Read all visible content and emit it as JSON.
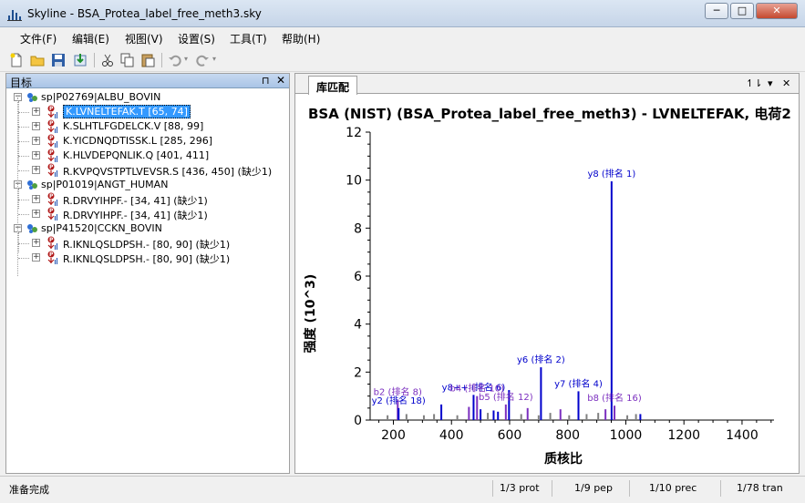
{
  "window": {
    "app_name": "Skyline",
    "file_name": "BSA_Protea_label_free_meth3.sky",
    "title_sep": " - ",
    "min_label": "─",
    "max_label": "□",
    "close_label": "✕"
  },
  "menu": [
    "文件(F)",
    "编辑(E)",
    "视图(V)",
    "设置(S)",
    "工具(T)",
    "帮助(H)"
  ],
  "toolbar": {
    "icons": [
      "new-doc-icon",
      "open-folder-icon",
      "save-icon",
      "import-icon",
      "cut-icon",
      "copy-icon",
      "paste-icon",
      "undo-icon",
      "redo-icon"
    ]
  },
  "targets_panel": {
    "title": "目标",
    "pin_glyph": "⊓",
    "close_glyph": "✕",
    "proteins": [
      {
        "name": "sp|P02769|ALBU_BOVIN",
        "peptides": [
          {
            "label": "K.LVNELTEFAK.T [65, 74]",
            "selected": true
          },
          {
            "label": "K.SLHTLFGDELCK.V [88, 99]",
            "selected": false
          },
          {
            "label": "K.YICDNQDTISSK.L [285, 296]",
            "selected": false
          },
          {
            "label": "K.HLVDEPQNLIK.Q [401, 411]",
            "selected": false
          },
          {
            "label": "R.KVPQVSTPTLVEVSR.S [436, 450] (缺少1)",
            "selected": false
          }
        ]
      },
      {
        "name": "sp|P01019|ANGT_HUMAN",
        "peptides": [
          {
            "label": "R.DRVYIHPF.- [34, 41] (缺少1)",
            "selected": false
          },
          {
            "label": "R.DRVYIHPF.- [34, 41] (缺少1)",
            "selected": false
          }
        ]
      },
      {
        "name": "sp|P41520|CCKN_BOVIN",
        "peptides": [
          {
            "label": "R.IKNLQSLDPSH.- [80, 90] (缺少1)",
            "selected": false
          },
          {
            "label": "R.IKNLQSLDPSH.- [80, 90] (缺少1)",
            "selected": false
          }
        ]
      }
    ]
  },
  "library_panel": {
    "tab_label": "库匹配",
    "ctrl_1": "↿⇂",
    "ctrl_2": "▾",
    "ctrl_close": "✕"
  },
  "chart_data": {
    "type": "bar",
    "title": "BSA (NIST) (BSA_Protea_label_free_meth3) - LVNELTEFAK, 电荷2",
    "xlabel": "质核比",
    "ylabel": "强度 (10^3)",
    "xlim": [
      120,
      1510
    ],
    "ylim": [
      0,
      12
    ],
    "xticks": [
      200,
      400,
      600,
      800,
      1000,
      1200,
      1400
    ],
    "yticks": [
      0,
      2,
      4,
      6,
      8,
      10,
      12
    ],
    "annotated_peaks": [
      {
        "mz": 951,
        "intensity": 9.95,
        "label": "y8 (排名 1)",
        "color": "#0000cc"
      },
      {
        "mz": 708,
        "intensity": 2.2,
        "label": "y6 (排名 2)",
        "color": "#0000cc"
      },
      {
        "mz": 837,
        "intensity": 1.2,
        "label": "y7 (排名 4)",
        "color": "#0000cc"
      },
      {
        "mz": 476,
        "intensity": 1.05,
        "label": "y8++ (排名 6)",
        "color": "#0000cc"
      },
      {
        "mz": 215,
        "intensity": 0.85,
        "label": "b2 (排名 8)",
        "color": "#7b2fbf"
      },
      {
        "mz": 488,
        "intensity": 1.0,
        "label": "b4 (排名 10)",
        "color": "#7b2fbf"
      },
      {
        "mz": 587,
        "intensity": 0.65,
        "label": "b5 (排名 12)",
        "color": "#7b2fbf"
      },
      {
        "mz": 961,
        "intensity": 0.6,
        "label": "b8 (排名 16)",
        "color": "#7b2fbf"
      },
      {
        "mz": 218,
        "intensity": 0.5,
        "label": "y2 (排名 18)",
        "color": "#0000cc"
      }
    ],
    "other_peaks": [
      {
        "mz": 365,
        "intensity": 0.65,
        "color": "#0000cc"
      },
      {
        "mz": 460,
        "intensity": 0.55,
        "color": "#7b2fbf"
      },
      {
        "mz": 500,
        "intensity": 0.45,
        "color": "#0000cc"
      },
      {
        "mz": 545,
        "intensity": 0.4,
        "color": "#0000cc"
      },
      {
        "mz": 560,
        "intensity": 0.35,
        "color": "#0000cc"
      },
      {
        "mz": 598,
        "intensity": 1.25,
        "color": "#0000cc"
      },
      {
        "mz": 662,
        "intensity": 0.5,
        "color": "#7b2fbf"
      },
      {
        "mz": 775,
        "intensity": 0.45,
        "color": "#7b2fbf"
      },
      {
        "mz": 930,
        "intensity": 0.45,
        "color": "#7b2fbf"
      },
      {
        "mz": 1050,
        "intensity": 0.25,
        "color": "#0000cc"
      },
      {
        "mz": 180,
        "intensity": 0.2,
        "color": "#808080"
      },
      {
        "mz": 245,
        "intensity": 0.25,
        "color": "#808080"
      },
      {
        "mz": 305,
        "intensity": 0.2,
        "color": "#808080"
      },
      {
        "mz": 340,
        "intensity": 0.25,
        "color": "#808080"
      },
      {
        "mz": 420,
        "intensity": 0.2,
        "color": "#808080"
      },
      {
        "mz": 525,
        "intensity": 0.3,
        "color": "#808080"
      },
      {
        "mz": 640,
        "intensity": 0.25,
        "color": "#808080"
      },
      {
        "mz": 700,
        "intensity": 0.2,
        "color": "#808080"
      },
      {
        "mz": 740,
        "intensity": 0.3,
        "color": "#808080"
      },
      {
        "mz": 805,
        "intensity": 0.2,
        "color": "#808080"
      },
      {
        "mz": 865,
        "intensity": 0.25,
        "color": "#808080"
      },
      {
        "mz": 905,
        "intensity": 0.3,
        "color": "#808080"
      },
      {
        "mz": 1005,
        "intensity": 0.2,
        "color": "#808080"
      },
      {
        "mz": 1035,
        "intensity": 0.25,
        "color": "#808080"
      }
    ]
  },
  "statusbar": {
    "status": "准备完成",
    "prot": "1/3 prot",
    "pep": "1/9 pep",
    "prec": "1/10 prec",
    "tran": "1/78 tran"
  }
}
